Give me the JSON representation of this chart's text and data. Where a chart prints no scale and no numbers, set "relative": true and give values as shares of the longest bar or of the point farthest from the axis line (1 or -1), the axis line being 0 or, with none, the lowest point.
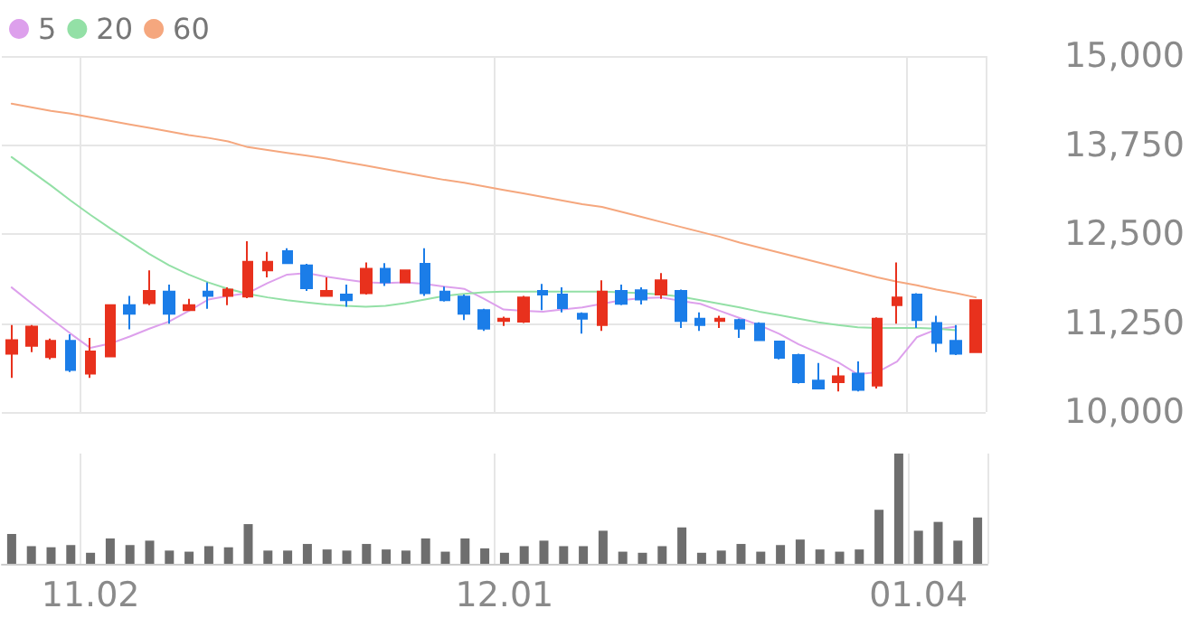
{
  "chart_data": [
    {
      "type": "candlestick",
      "categories": [
        null,
        null,
        null,
        null,
        "11.02",
        null,
        null,
        null,
        null,
        null,
        null,
        null,
        null,
        null,
        null,
        null,
        null,
        null,
        null,
        null,
        null,
        null,
        null,
        null,
        null,
        "12.01",
        null,
        null,
        null,
        null,
        null,
        null,
        null,
        null,
        null,
        null,
        null,
        null,
        null,
        null,
        null,
        null,
        null,
        null,
        null,
        null,
        "01.04",
        null,
        null,
        null
      ],
      "ohlc": [
        [
          10820,
          11220,
          10480,
          11010
        ],
        [
          10930,
          11220,
          10840,
          11200
        ],
        [
          10770,
          11030,
          10740,
          11000
        ],
        [
          11000,
          11090,
          10560,
          10590
        ],
        [
          10540,
          11040,
          10480,
          10850
        ],
        [
          10780,
          11510,
          10770,
          11500
        ],
        [
          11500,
          11630,
          11160,
          11380
        ],
        [
          11530,
          11990,
          11500,
          11700
        ],
        [
          11690,
          11790,
          11240,
          11380
        ],
        [
          11430,
          11590,
          11430,
          11500
        ],
        [
          11690,
          11820,
          11450,
          11630
        ],
        [
          11630,
          11750,
          11500,
          11720
        ],
        [
          11620,
          12400,
          11600,
          12110
        ],
        [
          11990,
          12250,
          11890,
          12110
        ],
        [
          12260,
          12300,
          12080,
          12090
        ],
        [
          12060,
          12080,
          11700,
          11740
        ],
        [
          11630,
          11890,
          11630,
          11700
        ],
        [
          11650,
          11790,
          11480,
          11570
        ],
        [
          11670,
          12100,
          11650,
          12010
        ],
        [
          12010,
          12090,
          11770,
          11820
        ],
        [
          11820,
          11990,
          11820,
          11990
        ],
        [
          12080,
          12300,
          11630,
          11670
        ],
        [
          11690,
          11760,
          11550,
          11570
        ],
        [
          11620,
          11650,
          11290,
          11380
        ],
        [
          11430,
          11450,
          11140,
          11170
        ],
        [
          11280,
          11340,
          11210,
          11310
        ],
        [
          11270,
          11630,
          11250,
          11610
        ],
        [
          11700,
          11800,
          11430,
          11650
        ],
        [
          11650,
          11750,
          11400,
          11460
        ],
        [
          11380,
          11400,
          11100,
          11310
        ],
        [
          11220,
          11850,
          11140,
          11690
        ],
        [
          11700,
          11790,
          11500,
          11520
        ],
        [
          11710,
          11750,
          11510,
          11580
        ],
        [
          11650,
          11950,
          11590,
          11850
        ],
        [
          11700,
          11720,
          11180,
          11280
        ],
        [
          11310,
          11400,
          11140,
          11220
        ],
        [
          11280,
          11350,
          11180,
          11310
        ],
        [
          11290,
          11310,
          11040,
          11170
        ],
        [
          11240,
          11260,
          11000,
          11010
        ],
        [
          10990,
          11000,
          10740,
          10760
        ],
        [
          10800,
          10820,
          10400,
          10420
        ],
        [
          10440,
          10690,
          10320,
          10330
        ],
        [
          10420,
          10630,
          10290,
          10500
        ],
        [
          10540,
          10710,
          10290,
          10310
        ],
        [
          10370,
          11330,
          10330,
          11310
        ],
        [
          11500,
          12100,
          11240,
          11610
        ],
        [
          11650,
          11670,
          11180,
          11290
        ],
        [
          11250,
          11350,
          10840,
          10970
        ],
        [
          11000,
          11220,
          10800,
          10820
        ],
        [
          10840,
          11580,
          10830,
          11570
        ]
      ],
      "colors": [
        "#e8311d",
        "#e8311d",
        "#e8311d",
        "#1b7de8",
        "#e8311d",
        "#e8311d",
        "#1b7de8",
        "#e8311d",
        "#1b7de8",
        "#e8311d",
        "#1b7de8",
        "#e8311d",
        "#e8311d",
        "#e8311d",
        "#1b7de8",
        "#1b7de8",
        "#e8311d",
        "#1b7de8",
        "#e8311d",
        "#1b7de8",
        "#e8311d",
        "#1b7de8",
        "#1b7de8",
        "#1b7de8",
        "#1b7de8",
        "#e8311d",
        "#e8311d",
        "#1b7de8",
        "#1b7de8",
        "#1b7de8",
        "#e8311d",
        "#1b7de8",
        "#1b7de8",
        "#e8311d",
        "#1b7de8",
        "#1b7de8",
        "#e8311d",
        "#1b7de8",
        "#1b7de8",
        "#1b7de8",
        "#1b7de8",
        "#1b7de8",
        "#e8311d",
        "#1b7de8",
        "#e8311d",
        "#e8311d",
        "#1b7de8",
        "#1b7de8",
        "#1b7de8",
        "#e8311d"
      ],
      "series": [
        {
          "type": "line",
          "name": "5",
          "color": "#dda0ec",
          "values": [
            11750,
            11530,
            11310,
            11100,
            10900,
            10960,
            11060,
            11170,
            11270,
            11420,
            11580,
            11630,
            11670,
            11810,
            11930,
            11950,
            11900,
            11860,
            11820,
            11810,
            11820,
            11800,
            11760,
            11730,
            11590,
            11440,
            11420,
            11410,
            11440,
            11470,
            11520,
            11570,
            11600,
            11610,
            11560,
            11520,
            11420,
            11320,
            11220,
            11100,
            10950,
            10830,
            10700,
            10530,
            10560,
            10710,
            11050,
            11160,
            11200,
            null
          ]
        },
        {
          "type": "line",
          "name": "20",
          "color": "#93e0a6",
          "values": [
            13580,
            13380,
            13180,
            12970,
            12770,
            12580,
            12400,
            12220,
            12060,
            11930,
            11820,
            11730,
            11660,
            11610,
            11570,
            11540,
            11510,
            11490,
            11480,
            11490,
            11530,
            11580,
            11630,
            11660,
            11680,
            11690,
            11690,
            11690,
            11690,
            11690,
            11690,
            11680,
            11670,
            11650,
            11620,
            11570,
            11520,
            11470,
            11410,
            11360,
            11310,
            11260,
            11220,
            11190,
            11180,
            11180,
            11180,
            11170,
            11150,
            null
          ]
        },
        {
          "type": "line",
          "name": "60",
          "color": "#f5a77e",
          "values": [
            14330,
            14280,
            14230,
            14190,
            14140,
            14090,
            14040,
            13990,
            13940,
            13890,
            13850,
            13800,
            13720,
            13680,
            13640,
            13600,
            13560,
            13510,
            13460,
            13410,
            13360,
            13310,
            13260,
            13220,
            13170,
            13120,
            13070,
            13020,
            12970,
            12920,
            12880,
            12810,
            12740,
            12670,
            12600,
            12530,
            12460,
            12380,
            12310,
            12240,
            12170,
            12100,
            12030,
            11960,
            11890,
            11830,
            11780,
            11720,
            11670,
            11610
          ]
        }
      ],
      "ylim": [
        10000,
        15000
      ],
      "yticks": [
        {
          "value": 10000,
          "label": "10,000"
        },
        {
          "value": 11250,
          "label": "11,250"
        },
        {
          "value": 12500,
          "label": "12,500"
        },
        {
          "value": 13750,
          "label": "13,750"
        },
        {
          "value": 15000,
          "label": "15,000"
        }
      ],
      "grid": true,
      "legend": "top left",
      "marker": "none",
      "tick_labels": "y"
    },
    {
      "type": "bar",
      "relative": true,
      "color": "#6e6e6e",
      "categories": [
        null,
        null,
        null,
        null,
        "11.02",
        null,
        null,
        null,
        null,
        null,
        null,
        null,
        null,
        null,
        null,
        null,
        null,
        null,
        null,
        null,
        null,
        null,
        null,
        null,
        null,
        "12.01",
        null,
        null,
        null,
        null,
        null,
        null,
        null,
        null,
        null,
        null,
        null,
        null,
        null,
        null,
        null,
        null,
        null,
        null,
        null,
        null,
        "01.04",
        null,
        null,
        null
      ],
      "values": [
        0.27,
        0.16,
        0.15,
        0.17,
        0.1,
        0.23,
        0.17,
        0.21,
        0.12,
        0.11,
        0.16,
        0.15,
        0.36,
        0.12,
        0.12,
        0.18,
        0.13,
        0.12,
        0.18,
        0.13,
        0.12,
        0.23,
        0.11,
        0.23,
        0.14,
        0.1,
        0.16,
        0.21,
        0.16,
        0.16,
        0.3,
        0.11,
        0.1,
        0.16,
        0.33,
        0.1,
        0.12,
        0.18,
        0.11,
        0.17,
        0.22,
        0.13,
        0.11,
        0.13,
        0.49,
        1,
        0.3,
        0.38,
        0.21,
        0.42
      ],
      "grid": "x",
      "tick_labels": "x"
    }
  ]
}
